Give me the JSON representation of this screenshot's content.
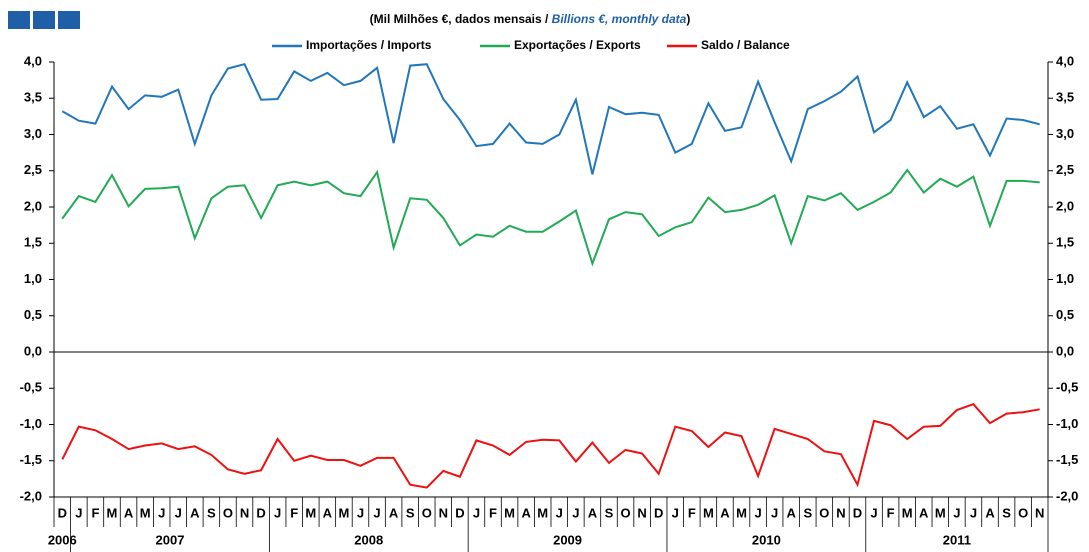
{
  "chart_data": {
    "type": "line",
    "title_parts": [
      "(Mil Milhões €, dados mensais / ",
      "Billions  €, monthly data",
      ")"
    ],
    "categories": [
      "D",
      "J",
      "F",
      "M",
      "A",
      "M",
      "J",
      "J",
      "A",
      "S",
      "O",
      "N",
      "D",
      "J",
      "F",
      "M",
      "A",
      "M",
      "J",
      "J",
      "A",
      "S",
      "O",
      "N",
      "D",
      "J",
      "F",
      "M",
      "A",
      "M",
      "J",
      "J",
      "A",
      "S",
      "O",
      "N",
      "D",
      "J",
      "F",
      "M",
      "A",
      "M",
      "J",
      "J",
      "A",
      "S",
      "O",
      "N",
      "D",
      "J",
      "F",
      "M",
      "A",
      "M",
      "J",
      "J",
      "A",
      "S",
      "O",
      "N"
    ],
    "years": [
      "2006",
      "2007",
      "2008",
      "2009",
      "2010",
      "2011"
    ],
    "series": [
      {
        "name": "Importações / Imports",
        "color": "#2277bb",
        "values": [
          3.32,
          3.19,
          3.15,
          3.66,
          3.35,
          3.54,
          3.52,
          3.62,
          2.87,
          3.54,
          3.91,
          3.97,
          3.48,
          3.49,
          3.87,
          3.74,
          3.85,
          3.68,
          3.74,
          3.92,
          2.88,
          3.95,
          3.97,
          3.49,
          3.2,
          2.84,
          2.87,
          3.15,
          2.89,
          2.87,
          3.0,
          3.48,
          2.45,
          3.38,
          3.28,
          3.3,
          3.27,
          2.75,
          2.87,
          3.43,
          3.05,
          3.1,
          3.73,
          3.17,
          2.63,
          3.35,
          3.46,
          3.59,
          3.8,
          3.03,
          3.2,
          3.72,
          3.24,
          3.39,
          3.08,
          3.14,
          2.71,
          3.22,
          3.2,
          3.14
        ]
      },
      {
        "name": "Exportações / Exports",
        "color": "#22aa55",
        "values": [
          1.84,
          2.15,
          2.07,
          2.44,
          2.01,
          2.25,
          2.26,
          2.28,
          1.57,
          2.12,
          2.28,
          2.3,
          1.85,
          2.3,
          2.35,
          2.3,
          2.35,
          2.19,
          2.15,
          2.48,
          1.44,
          2.12,
          2.1,
          1.85,
          1.47,
          1.62,
          1.59,
          1.74,
          1.66,
          1.66,
          1.8,
          1.95,
          1.22,
          1.83,
          1.93,
          1.9,
          1.6,
          1.72,
          1.79,
          2.13,
          1.93,
          1.96,
          2.03,
          2.16,
          1.5,
          2.15,
          2.09,
          2.19,
          1.96,
          2.07,
          2.2,
          2.51,
          2.2,
          2.39,
          2.28,
          2.42,
          1.74,
          2.36,
          2.36,
          2.34
        ]
      },
      {
        "name": "Saldo / Balance",
        "color": "#ee1111",
        "values": [
          -1.48,
          -1.03,
          -1.08,
          -1.2,
          -1.34,
          -1.29,
          -1.26,
          -1.34,
          -1.3,
          -1.42,
          -1.62,
          -1.68,
          -1.63,
          -1.2,
          -1.5,
          -1.43,
          -1.49,
          -1.49,
          -1.57,
          -1.46,
          -1.46,
          -1.83,
          -1.87,
          -1.64,
          -1.72,
          -1.22,
          -1.29,
          -1.42,
          -1.24,
          -1.21,
          -1.22,
          -1.51,
          -1.25,
          -1.53,
          -1.35,
          -1.4,
          -1.68,
          -1.03,
          -1.09,
          -1.31,
          -1.11,
          -1.16,
          -1.71,
          -1.06,
          -1.13,
          -1.2,
          -1.37,
          -1.41,
          -1.83,
          -0.95,
          -1.01,
          -1.2,
          -1.03,
          -1.02,
          -0.8,
          -0.72,
          -0.98,
          -0.85,
          -0.83,
          -0.79
        ]
      }
    ],
    "ylim": [
      -2,
      4
    ],
    "yticks": [
      {
        "value": 4,
        "label": "4,0"
      },
      {
        "value": 3.5,
        "label": "3,5"
      },
      {
        "value": 3,
        "label": "3,0"
      },
      {
        "value": 2.5,
        "label": "2,5"
      },
      {
        "value": 2,
        "label": "2,0"
      },
      {
        "value": 1.5,
        "label": "1,5"
      },
      {
        "value": 1,
        "label": "1,0"
      },
      {
        "value": 0.5,
        "label": "0,5"
      },
      {
        "value": 0,
        "label": "0,0"
      },
      {
        "value": -0.5,
        "label": "-0,5"
      },
      {
        "value": -1,
        "label": "-1,0"
      },
      {
        "value": -1.5,
        "label": "-1,5"
      },
      {
        "value": -2,
        "label": "-2,0"
      }
    ]
  }
}
